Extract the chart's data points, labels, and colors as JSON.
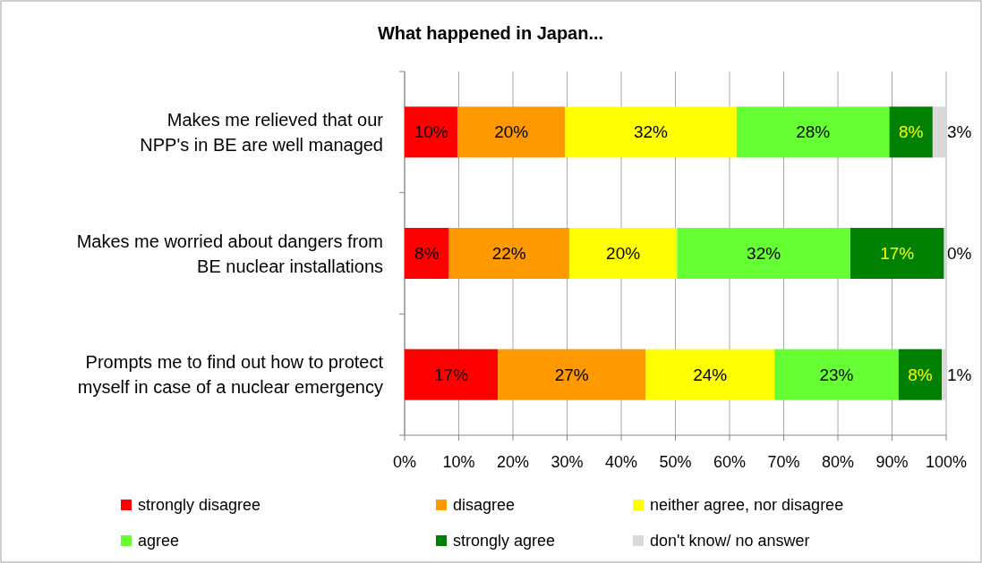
{
  "chart_data": {
    "type": "bar",
    "orientation": "horizontal",
    "stacked": true,
    "title": "What happened in Japan...",
    "categories": [
      "Makes me relieved that our\nNPP's in BE are well managed",
      "Makes me worried about dangers from\nBE nuclear installations",
      "Prompts me to find out how to protect\nmyself in case of a nuclear emergency"
    ],
    "series": [
      {
        "name": "strongly disagree",
        "color": "#ff0000",
        "values": [
          9.8,
          8.2,
          17.2
        ],
        "value_labels": [
          "10%",
          "8%",
          "17%"
        ]
      },
      {
        "name": "disagree",
        "color": "#ff9900",
        "values": [
          19.8,
          22.2,
          27.3
        ],
        "value_labels": [
          "20%",
          "22%",
          "27%"
        ]
      },
      {
        "name": "neither agree, nor disagree",
        "color": "#ffff00",
        "values": [
          31.7,
          19.9,
          23.8
        ],
        "value_labels": [
          "32%",
          "20%",
          "24%"
        ]
      },
      {
        "name": "agree",
        "color": "#66ff33",
        "values": [
          28.2,
          32.0,
          22.9
        ],
        "value_labels": [
          "28%",
          "32%",
          "23%"
        ]
      },
      {
        "name": "strongly agree",
        "color": "#008000",
        "values": [
          8.0,
          17.3,
          8.0
        ],
        "value_labels": [
          "8%",
          "17%",
          "8%"
        ]
      },
      {
        "name": "don't know/ no answer",
        "color": "#d9d9d9",
        "values": [
          2.5,
          0.4,
          0.8
        ],
        "value_labels": [
          "3%",
          "0%",
          "1%"
        ]
      }
    ],
    "xlim": [
      0,
      100
    ],
    "xticks": [
      {
        "value": 0,
        "label": "0%"
      },
      {
        "value": 10,
        "label": "10%"
      },
      {
        "value": 20,
        "label": "20%"
      },
      {
        "value": 30,
        "label": "30%"
      },
      {
        "value": 40,
        "label": "40%"
      },
      {
        "value": 50,
        "label": "50%"
      },
      {
        "value": 60,
        "label": "60%"
      },
      {
        "value": 70,
        "label": "70%"
      },
      {
        "value": 80,
        "label": "80%"
      },
      {
        "value": 90,
        "label": "90%"
      },
      {
        "value": 100,
        "label": "100%"
      }
    ],
    "grid": "x",
    "legend": "bottom"
  }
}
